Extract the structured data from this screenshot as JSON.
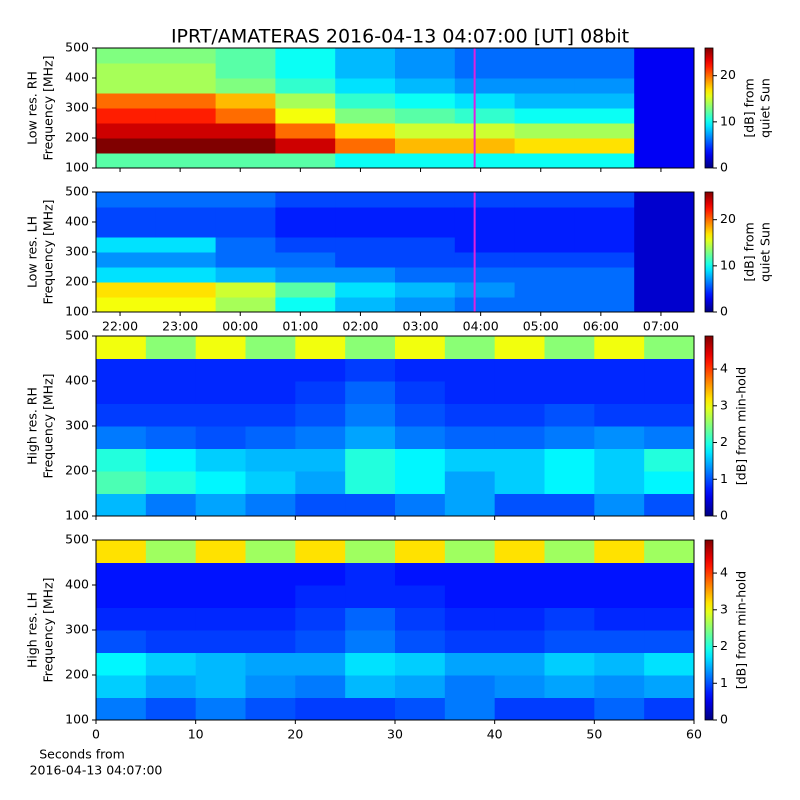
{
  "chart_data": [
    {
      "type": "spectrogram",
      "title": "IPRT/AMATERAS 2016-04-13 04:07:00 [UT]   08bit",
      "ylabel": [
        "Low res. RH",
        "Frequency [MHz]"
      ],
      "ylim": [
        100,
        500
      ],
      "yticks": [
        100,
        200,
        300,
        400,
        500
      ],
      "xlim": [
        21.6,
        31.55
      ],
      "xticks": [
        {
          "value": 22,
          "label": "22:00"
        },
        {
          "value": 23,
          "label": "23:00"
        },
        {
          "value": 24,
          "label": "00:00"
        },
        {
          "value": 25,
          "label": "01:00"
        },
        {
          "value": 26,
          "label": "02:00"
        },
        {
          "value": 27,
          "label": "03:00"
        },
        {
          "value": 28,
          "label": "04:00"
        },
        {
          "value": 29,
          "label": "05:00"
        },
        {
          "value": 30,
          "label": "06:00"
        },
        {
          "value": 31,
          "label": "07:00"
        }
      ],
      "show_xtick_labels": false,
      "marker_x": 27.9,
      "marker_color": "#e020e0",
      "colorbar": {
        "label": [
          "[dB] from",
          "quiet Sun"
        ],
        "lim": [
          0,
          26
        ],
        "ticks": [
          0,
          10,
          20
        ]
      },
      "z": [
        [
          12,
          12,
          12,
          12,
          10,
          10,
          10,
          10,
          10,
          3
        ],
        [
          26,
          26,
          26,
          24,
          20,
          18,
          18,
          17,
          17,
          3
        ],
        [
          24,
          24,
          24,
          20,
          17,
          15,
          15,
          14,
          14,
          3
        ],
        [
          22,
          22,
          20,
          16,
          13,
          12,
          11,
          10,
          10,
          3
        ],
        [
          20,
          20,
          18,
          14,
          11,
          10,
          9,
          8,
          8,
          3
        ],
        [
          14,
          14,
          13,
          11,
          9,
          8,
          7,
          7,
          7,
          3
        ],
        [
          14,
          14,
          12,
          10,
          8,
          7,
          6,
          6,
          6,
          3
        ],
        [
          13,
          13,
          12,
          10,
          8,
          7,
          6,
          6,
          6,
          3
        ]
      ]
    },
    {
      "type": "spectrogram",
      "ylabel": [
        "Low res. LH",
        "Frequency [MHz]"
      ],
      "ylim": [
        100,
        500
      ],
      "yticks": [
        100,
        200,
        300,
        400,
        500
      ],
      "xlim": [
        21.6,
        31.55
      ],
      "xticks": [
        {
          "value": 22,
          "label": "22:00"
        },
        {
          "value": 23,
          "label": "23:00"
        },
        {
          "value": 24,
          "label": "00:00"
        },
        {
          "value": 25,
          "label": "01:00"
        },
        {
          "value": 26,
          "label": "02:00"
        },
        {
          "value": 27,
          "label": "03:00"
        },
        {
          "value": 28,
          "label": "04:00"
        },
        {
          "value": 29,
          "label": "05:00"
        },
        {
          "value": 30,
          "label": "06:00"
        },
        {
          "value": 31,
          "label": "07:00"
        }
      ],
      "show_xtick_labels": true,
      "marker_x": 27.9,
      "marker_color": "#e020e0",
      "colorbar": {
        "label": [
          "[dB] from",
          "quiet Sun"
        ],
        "lim": [
          0,
          26
        ],
        "ticks": [
          0,
          10,
          20
        ]
      },
      "z": [
        [
          16,
          16,
          14,
          10,
          8,
          7,
          6,
          6,
          6,
          2
        ],
        [
          17,
          17,
          15,
          12,
          9,
          8,
          7,
          6,
          6,
          2
        ],
        [
          9,
          9,
          8,
          7,
          7,
          6,
          6,
          6,
          6,
          2
        ],
        [
          7,
          7,
          6,
          6,
          5,
          5,
          5,
          5,
          5,
          2
        ],
        [
          9,
          9,
          6,
          5,
          5,
          5,
          4,
          4,
          4,
          2
        ],
        [
          5,
          5,
          5,
          4,
          4,
          4,
          4,
          4,
          4,
          2
        ],
        [
          5,
          5,
          5,
          4,
          4,
          4,
          4,
          4,
          4,
          2
        ],
        [
          6,
          6,
          6,
          5,
          5,
          5,
          5,
          5,
          5,
          2
        ]
      ]
    },
    {
      "type": "spectrogram",
      "ylabel": [
        "High res. RH",
        "Frequency [MHz]"
      ],
      "ylim": [
        100,
        500
      ],
      "yticks": [
        100,
        200,
        300,
        400,
        500
      ],
      "xlim": [
        0,
        60
      ],
      "xticks": [
        0,
        10,
        20,
        30,
        40,
        50,
        60
      ],
      "show_xtick_labels": false,
      "colorbar": {
        "label": [
          "[dB] from min-hold"
        ],
        "lim": [
          0,
          4.9
        ],
        "ticks": [
          0,
          1,
          2,
          3,
          4
        ]
      },
      "z": [
        [
          1.5,
          1.2,
          1.4,
          1.2,
          1,
          1,
          1.2,
          1.4,
          1,
          1,
          1.3,
          1
        ],
        [
          2.2,
          2,
          1.8,
          1.6,
          1.4,
          2,
          1.8,
          1.4,
          1.6,
          1.8,
          1.6,
          1.8
        ],
        [
          2,
          1.8,
          1.6,
          1.5,
          1.5,
          2,
          1.8,
          1.6,
          1.6,
          1.8,
          1.6,
          2
        ],
        [
          1.2,
          1.1,
          1,
          1.1,
          1.2,
          1.4,
          1.2,
          1.1,
          1.1,
          1.2,
          1.3,
          1.2
        ],
        [
          0.9,
          0.9,
          0.9,
          0.9,
          1,
          1.2,
          1,
          0.9,
          0.9,
          1,
          0.9,
          0.9
        ],
        [
          0.8,
          0.8,
          0.8,
          0.8,
          0.9,
          1.1,
          0.9,
          0.8,
          0.8,
          0.8,
          0.8,
          0.8
        ],
        [
          0.8,
          0.8,
          0.8,
          0.8,
          0.8,
          0.9,
          0.8,
          0.8,
          0.8,
          0.8,
          0.8,
          0.8
        ],
        [
          3,
          2.5,
          3,
          2.5,
          3,
          2.5,
          3,
          2.5,
          3,
          2.5,
          3,
          2.5
        ]
      ]
    },
    {
      "type": "spectrogram",
      "ylabel": [
        "High res. LH",
        "Frequency [MHz]"
      ],
      "ylim": [
        100,
        500
      ],
      "yticks": [
        100,
        200,
        300,
        400,
        500
      ],
      "xlim": [
        0,
        60
      ],
      "xticks": [
        0,
        10,
        20,
        30,
        40,
        50,
        60
      ],
      "show_xtick_labels": true,
      "xlabel": [
        "Seconds from",
        "2016-04-13 04:07:00"
      ],
      "colorbar": {
        "label": [
          "[dB] from min-hold"
        ],
        "lim": [
          0,
          4.9
        ],
        "ticks": [
          0,
          1,
          2,
          3,
          4
        ]
      },
      "z": [
        [
          1.2,
          1,
          1.2,
          1,
          0.9,
          0.9,
          1,
          1.2,
          0.9,
          0.9,
          1.1,
          0.9
        ],
        [
          1.6,
          1.4,
          1.5,
          1.3,
          1.2,
          1.5,
          1.4,
          1.2,
          1.3,
          1.4,
          1.3,
          1.4
        ],
        [
          1.8,
          1.6,
          1.5,
          1.4,
          1.4,
          1.7,
          1.6,
          1.4,
          1.4,
          1.6,
          1.5,
          1.7
        ],
        [
          1,
          0.9,
          0.9,
          0.9,
          1,
          1.2,
          1,
          0.9,
          0.9,
          1,
          1,
          1
        ],
        [
          0.8,
          0.8,
          0.8,
          0.8,
          0.9,
          1.1,
          0.9,
          0.8,
          0.8,
          0.9,
          0.8,
          0.8
        ],
        [
          0.7,
          0.7,
          0.7,
          0.7,
          0.8,
          0.8,
          0.8,
          0.7,
          0.7,
          0.7,
          0.7,
          0.7
        ],
        [
          0.7,
          0.7,
          0.7,
          0.7,
          0.7,
          0.8,
          0.7,
          0.7,
          0.7,
          0.7,
          0.7,
          0.7
        ],
        [
          3.2,
          2.6,
          3.2,
          2.6,
          3.2,
          2.6,
          3.2,
          2.6,
          3.2,
          2.6,
          3.2,
          2.6
        ]
      ]
    }
  ]
}
